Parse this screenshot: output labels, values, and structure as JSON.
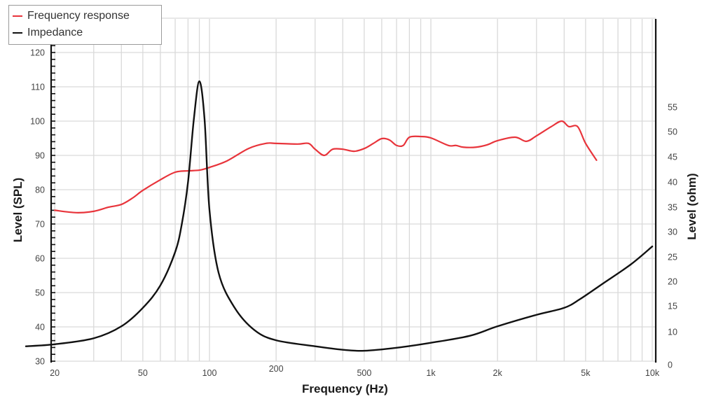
{
  "chart_data": {
    "type": "line",
    "title": "",
    "xlabel": "Frequency (Hz)",
    "ylabel": "Level (SPL)",
    "y2label": "Level (ohm)",
    "xscale": "log",
    "xlim": [
      20,
      10000
    ],
    "ylim": [
      30,
      120
    ],
    "y2ticks": [
      0,
      10,
      15,
      20,
      25,
      30,
      35,
      40,
      45,
      50,
      55
    ],
    "xticks": [
      {
        "value": 20,
        "label": "20"
      },
      {
        "value": 50,
        "label": "50"
      },
      {
        "value": 100,
        "label": "100"
      },
      {
        "value": 200,
        "label": "200"
      },
      {
        "value": 500,
        "label": "500"
      },
      {
        "value": 1000,
        "label": "1k"
      },
      {
        "value": 2000,
        "label": "2k"
      },
      {
        "value": 5000,
        "label": "5k"
      },
      {
        "value": 10000,
        "label": "10k"
      }
    ],
    "yticks": [
      30,
      40,
      50,
      60,
      70,
      80,
      90,
      100,
      110,
      120
    ],
    "grid": true,
    "legend_position": "top-left",
    "series": [
      {
        "name": "Frequency response",
        "axis": "left",
        "color": "#e8343b",
        "x": [
          20,
          25,
          30,
          35,
          40,
          45,
          50,
          60,
          70,
          80,
          90,
          100,
          120,
          150,
          180,
          200,
          250,
          280,
          300,
          330,
          360,
          400,
          450,
          500,
          550,
          600,
          650,
          700,
          750,
          800,
          900,
          1000,
          1200,
          1300,
          1400,
          1600,
          1800,
          2000,
          2400,
          2700,
          3000,
          3500,
          3900,
          4200,
          4600,
          5000,
          5600
        ],
        "values": [
          74,
          73.3,
          73.7,
          74.9,
          75.7,
          77.6,
          79.8,
          82.9,
          85.1,
          85.5,
          85.7,
          86.5,
          88.4,
          92,
          93.5,
          93.5,
          93.3,
          93.5,
          91.8,
          90,
          91.8,
          91.8,
          91.2,
          92,
          93.5,
          94.9,
          94.5,
          92.9,
          92.9,
          95.3,
          95.5,
          95.1,
          92.9,
          92.9,
          92.4,
          92.4,
          93.1,
          94.3,
          95.3,
          94.1,
          95.7,
          98.4,
          100,
          98.4,
          98.4,
          93.5,
          88.6
        ]
      },
      {
        "name": "Impedance",
        "axis": "right",
        "color": "#111111",
        "x": [
          15,
          20,
          30,
          40,
          50,
          60,
          70,
          75,
          80,
          85,
          90,
          95,
          100,
          110,
          130,
          160,
          200,
          300,
          400,
          500,
          700,
          1000,
          1500,
          2000,
          3000,
          4000,
          4700,
          6000,
          8000,
          10000
        ],
        "values": [
          7.1,
          7.5,
          8.7,
          11.1,
          14.8,
          19.3,
          26,
          31.6,
          40,
          52.6,
          60.2,
          52.6,
          34.4,
          21.8,
          14.8,
          10.3,
          8.3,
          7.1,
          6.4,
          6.2,
          6.8,
          7.8,
          9.2,
          11.1,
          13.4,
          14.8,
          16.5,
          19.7,
          23.5,
          27.1
        ]
      }
    ]
  },
  "legend": {
    "items": [
      {
        "label": "Frequency response",
        "color": "#e8343b"
      },
      {
        "label": "Impedance",
        "color": "#111111"
      }
    ]
  },
  "axes": {
    "x_title": "Frequency (Hz)",
    "y_left_title": "Level (SPL)",
    "y_right_title": "Level (ohm)"
  }
}
